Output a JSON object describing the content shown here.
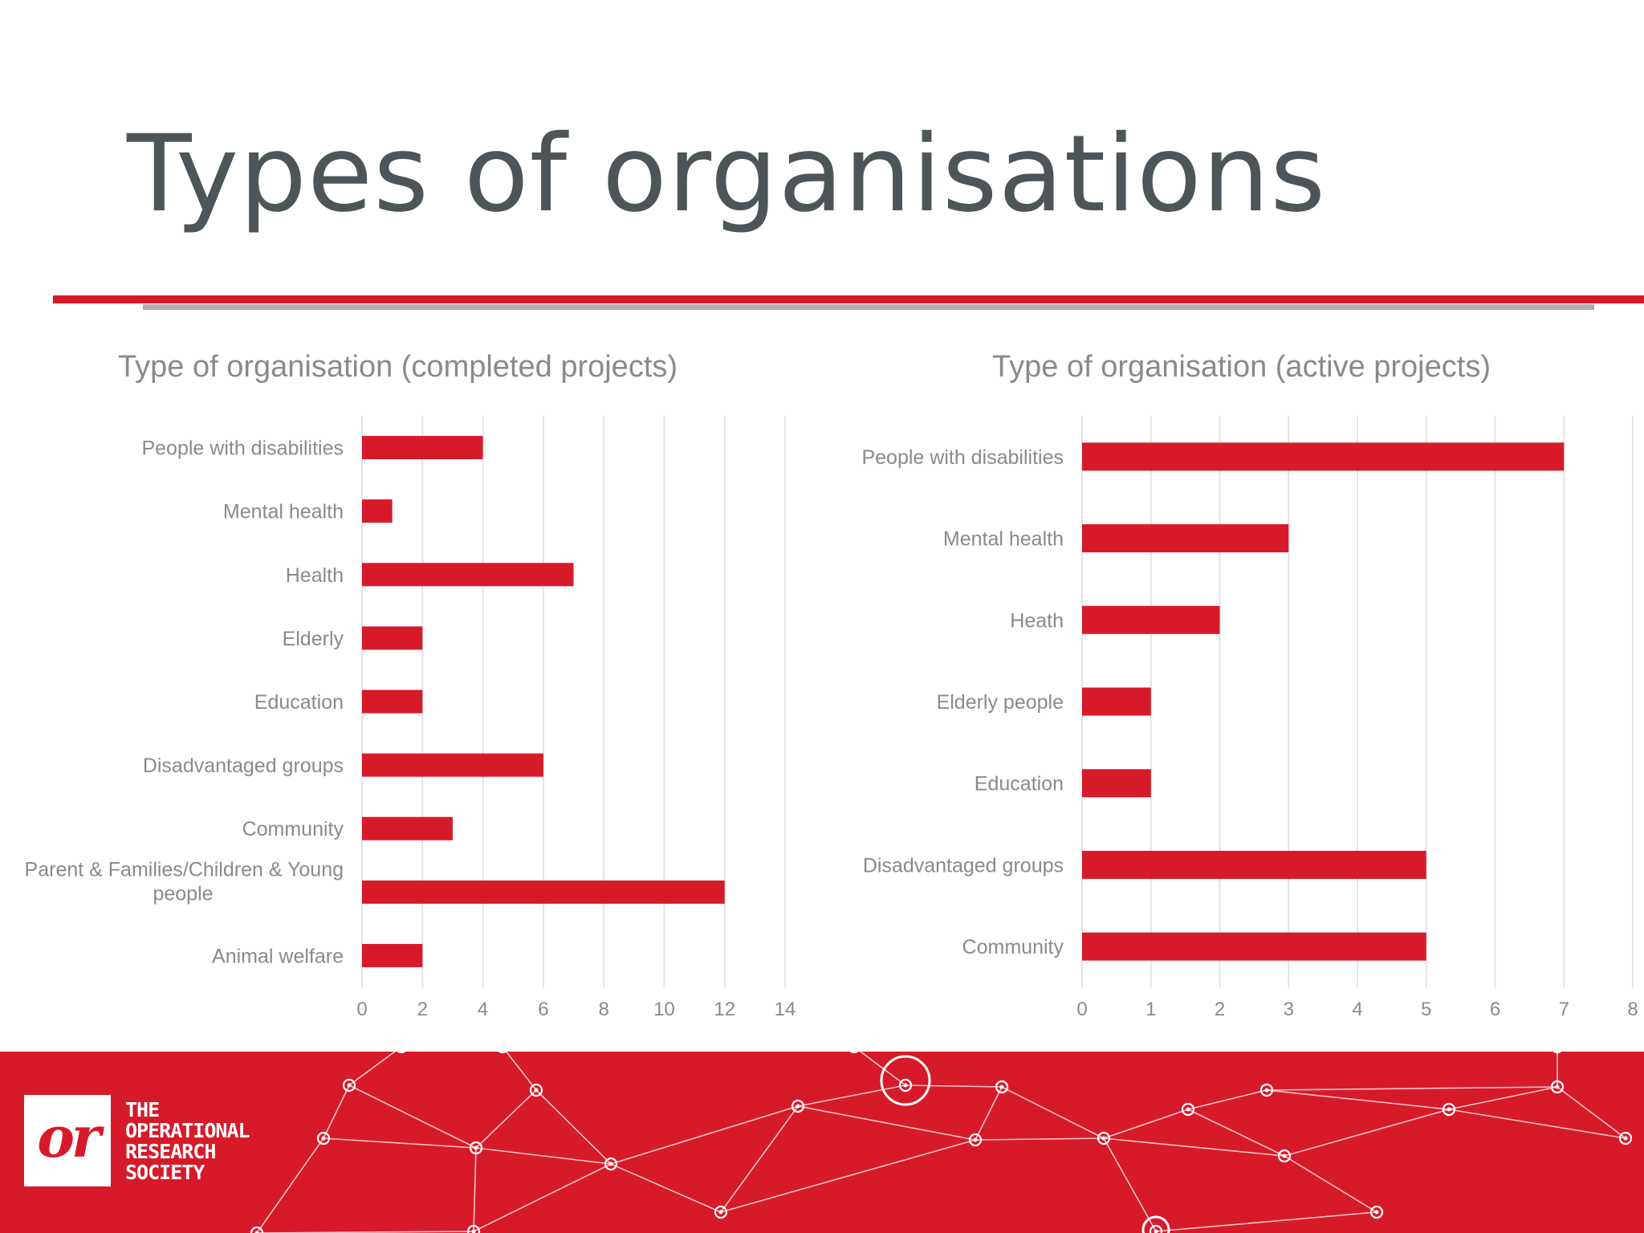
{
  "slide": {
    "title": "Types of organisations"
  },
  "colors": {
    "accent": "#d71a29",
    "title_text": "#4d5558",
    "label_text": "#8a8a8a",
    "gridline": "#e3e3e3",
    "rule_grey": "#b3aaa8"
  },
  "chart_data": [
    {
      "type": "bar",
      "orientation": "horizontal",
      "title": "Type of organisation (completed projects)",
      "categories": [
        "People with disabilities",
        "Mental health",
        "Health",
        "Elderly",
        "Education",
        "Disadvantaged groups",
        "Community",
        "Parent & Families/Children & Young people",
        "Animal welfare"
      ],
      "category_lines": [
        [
          "People with disabilities"
        ],
        [
          "Mental health"
        ],
        [
          "Health"
        ],
        [
          "Elderly"
        ],
        [
          "Education"
        ],
        [
          "Disadvantaged groups"
        ],
        [
          "Community"
        ],
        [
          "Parent & Families/Children & Young",
          "people"
        ],
        [
          "Animal welfare"
        ]
      ],
      "values": [
        4,
        1,
        7,
        2,
        2,
        6,
        3,
        12,
        2
      ],
      "xlim": [
        0,
        14
      ],
      "xticks": [
        0,
        2,
        4,
        6,
        8,
        10,
        12,
        14
      ],
      "grid": "vertical",
      "legend": "none"
    },
    {
      "type": "bar",
      "orientation": "horizontal",
      "title": "Type of organisation (active projects)",
      "categories": [
        "People with disabilities",
        "Mental health",
        "Heath",
        "Elderly people",
        "Education",
        "Disadvantaged groups",
        "Community"
      ],
      "category_lines": [
        [
          "People with disabilities"
        ],
        [
          "Mental health"
        ],
        [
          "Heath"
        ],
        [
          "Elderly people"
        ],
        [
          "Education"
        ],
        [
          "Disadvantaged groups"
        ],
        [
          "Community"
        ]
      ],
      "values": [
        7,
        3,
        2,
        1,
        1,
        5,
        5
      ],
      "xlim": [
        0,
        8
      ],
      "xticks": [
        0,
        1,
        2,
        3,
        4,
        5,
        6,
        7,
        8
      ],
      "grid": "vertical",
      "legend": "none"
    }
  ],
  "footer": {
    "logo_mark": "or",
    "logo_lines": [
      "THE",
      "OPERATIONAL",
      "RESEARCH",
      "SOCIETY"
    ]
  }
}
